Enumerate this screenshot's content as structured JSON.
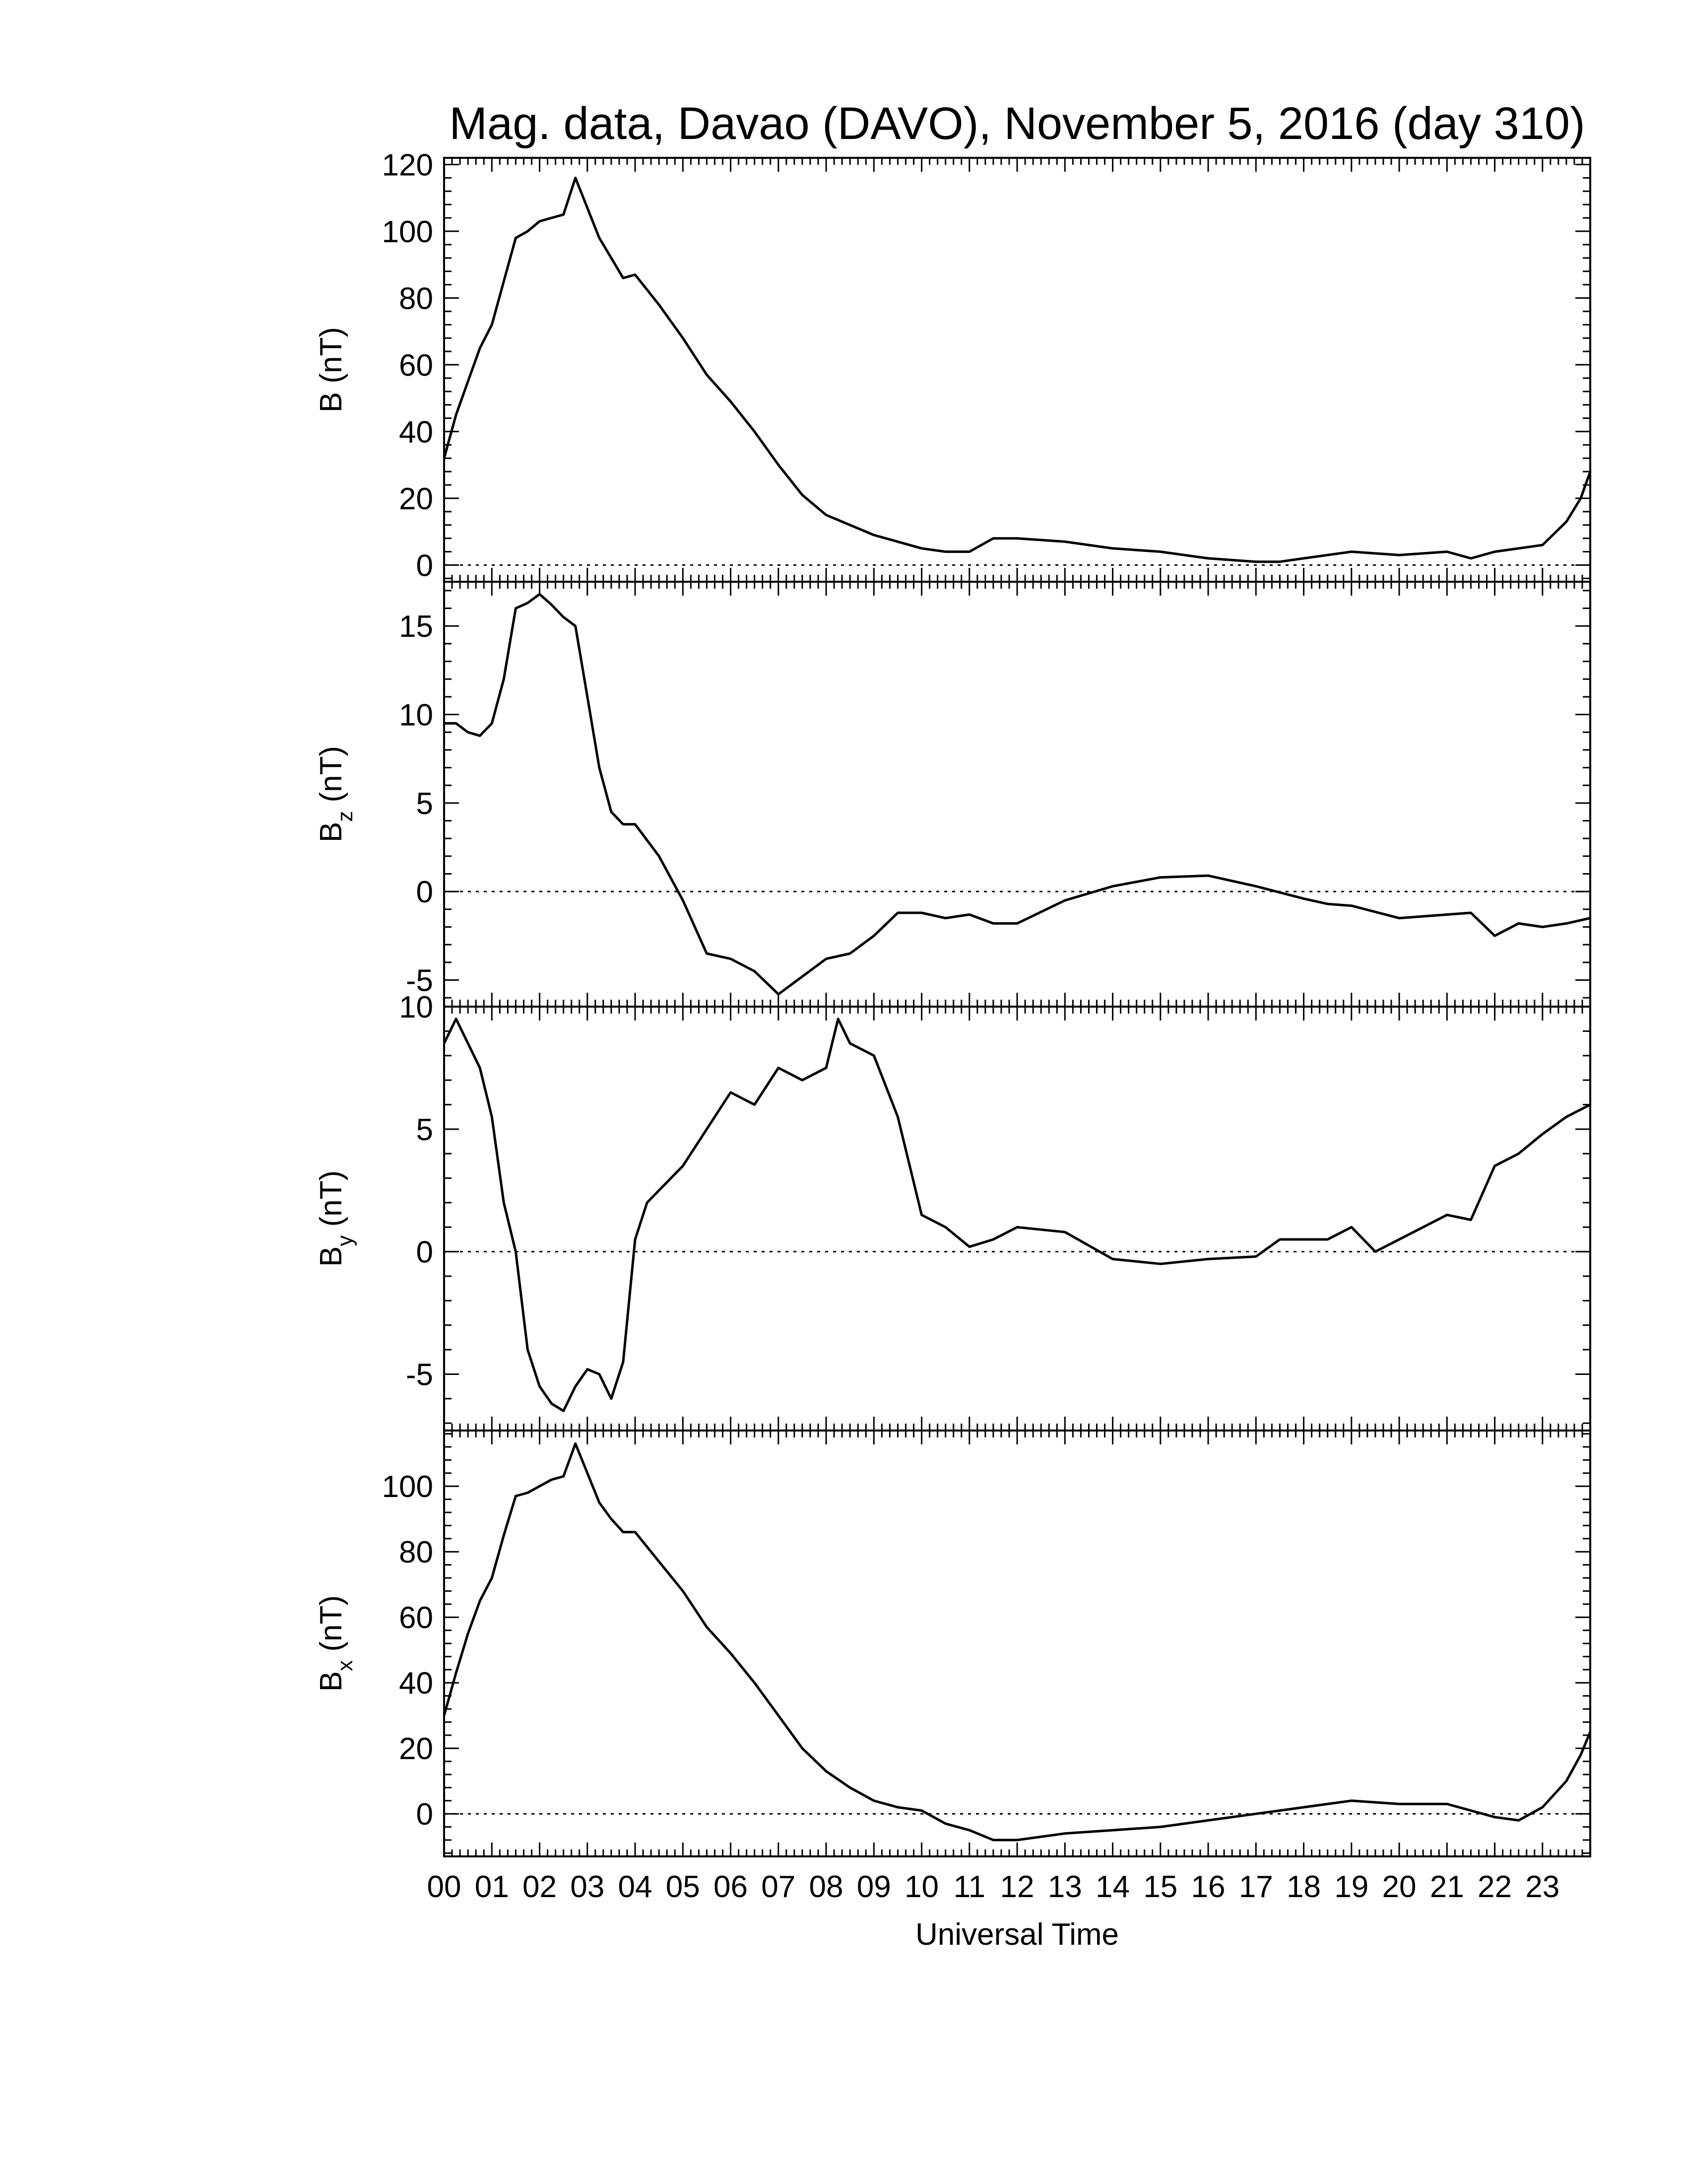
{
  "chart_data": {
    "type": "line",
    "title": "Mag. data, Davao (DAVO), November 5, 2016 (day 310)",
    "xlabel": "Universal Time",
    "x_ticks": [
      "00",
      "01",
      "02",
      "03",
      "04",
      "05",
      "06",
      "07",
      "08",
      "09",
      "10",
      "11",
      "12",
      "13",
      "14",
      "15",
      "16",
      "17",
      "18",
      "19",
      "20",
      "21",
      "22",
      "23"
    ],
    "xlim": [
      0,
      24
    ],
    "grid": false,
    "line_color": "#000000",
    "zero_reference": "dotted",
    "panels": [
      {
        "name": "B",
        "ylabel": "B (nT)",
        "ylabel_main": "B",
        "ylabel_sub": "",
        "ylabel_unit": "(nT)",
        "ylim": [
          -5,
          122
        ],
        "yticks": [
          0,
          20,
          40,
          60,
          80,
          100,
          120
        ],
        "ytick_labels": [
          "0",
          "20",
          "40",
          "60",
          "80",
          "100",
          "120"
        ],
        "x": [
          0,
          0.25,
          0.5,
          0.75,
          1.0,
          1.25,
          1.5,
          1.75,
          2.0,
          2.25,
          2.5,
          2.75,
          3.0,
          3.25,
          3.5,
          3.75,
          4.0,
          4.5,
          5.0,
          5.5,
          6.0,
          6.5,
          7.0,
          7.5,
          8.0,
          8.5,
          9.0,
          9.5,
          10.0,
          10.5,
          11.0,
          11.5,
          12.0,
          13.0,
          14.0,
          15.0,
          16.0,
          17.0,
          17.5,
          18.0,
          18.5,
          19.0,
          20.0,
          21.0,
          21.5,
          22.0,
          22.5,
          23.0,
          23.5,
          23.8,
          24.0
        ],
        "y": [
          32,
          45,
          55,
          65,
          72,
          85,
          98,
          100,
          103,
          104,
          105,
          116,
          107,
          98,
          92,
          86,
          87,
          78,
          68,
          57,
          49,
          40,
          30,
          21,
          15,
          12,
          9,
          7,
          5,
          4,
          4,
          8,
          8,
          7,
          5,
          4,
          2,
          1,
          1,
          2,
          3,
          4,
          3,
          4,
          2,
          4,
          5,
          6,
          13,
          20,
          28
        ]
      },
      {
        "name": "Bz",
        "ylabel": "Bz (nT)",
        "ylabel_main": "B",
        "ylabel_sub": "z",
        "ylabel_unit": "(nT)",
        "ylim": [
          -6.5,
          17.5
        ],
        "yticks": [
          -5,
          0,
          5,
          10,
          15
        ],
        "ytick_labels": [
          "-5",
          "0",
          "5",
          "10",
          "15"
        ],
        "x": [
          0,
          0.25,
          0.5,
          0.75,
          1.0,
          1.25,
          1.5,
          1.75,
          2.0,
          2.25,
          2.5,
          2.75,
          3.0,
          3.25,
          3.5,
          3.75,
          4.0,
          4.5,
          5.0,
          5.5,
          6.0,
          6.5,
          7.0,
          7.5,
          8.0,
          8.5,
          9.0,
          9.5,
          10.0,
          10.5,
          11.0,
          11.5,
          12.0,
          13.0,
          14.0,
          15.0,
          16.0,
          17.0,
          18.0,
          18.5,
          19.0,
          20.0,
          21.0,
          21.5,
          22.0,
          22.5,
          23.0,
          23.5,
          24.0
        ],
        "y": [
          9.5,
          9.5,
          9.0,
          8.8,
          9.5,
          12.0,
          16.0,
          16.3,
          16.8,
          16.2,
          15.5,
          15.0,
          11.0,
          7.0,
          4.5,
          3.8,
          3.8,
          2.0,
          -0.5,
          -3.5,
          -3.8,
          -4.5,
          -5.8,
          -4.8,
          -3.8,
          -3.5,
          -2.5,
          -1.2,
          -1.2,
          -1.5,
          -1.3,
          -1.8,
          -1.8,
          -0.5,
          0.3,
          0.8,
          0.9,
          0.3,
          -0.4,
          -0.7,
          -0.8,
          -1.5,
          -1.3,
          -1.2,
          -2.5,
          -1.8,
          -2.0,
          -1.8,
          -1.5
        ]
      },
      {
        "name": "By",
        "ylabel": "By (nT)",
        "ylabel_main": "B",
        "ylabel_sub": "y",
        "ylabel_unit": "(nT)",
        "ylim": [
          -7.3,
          10.0
        ],
        "yticks": [
          -5,
          0,
          5,
          10
        ],
        "ytick_labels": [
          "-5",
          "0",
          "5",
          "10"
        ],
        "x": [
          0,
          0.25,
          0.5,
          0.75,
          1.0,
          1.25,
          1.5,
          1.75,
          2.0,
          2.25,
          2.5,
          2.75,
          3.0,
          3.25,
          3.5,
          3.75,
          4.0,
          4.25,
          4.5,
          5.0,
          5.5,
          6.0,
          6.5,
          7.0,
          7.5,
          8.0,
          8.25,
          8.5,
          9.0,
          9.5,
          10.0,
          10.5,
          11.0,
          11.5,
          12.0,
          13.0,
          14.0,
          15.0,
          16.0,
          17.0,
          17.5,
          18.0,
          18.5,
          19.0,
          19.5,
          20.0,
          21.0,
          21.5,
          22.0,
          22.5,
          23.0,
          23.5,
          24.0
        ],
        "y": [
          8.5,
          9.5,
          8.5,
          7.5,
          5.5,
          2.0,
          0.0,
          -4.0,
          -5.5,
          -6.2,
          -6.5,
          -5.5,
          -4.8,
          -5.0,
          -6.0,
          -4.5,
          0.5,
          2.0,
          2.5,
          3.5,
          5.0,
          6.5,
          6.0,
          7.5,
          7.0,
          7.5,
          9.5,
          8.5,
          8.0,
          5.5,
          1.5,
          1.0,
          0.2,
          0.5,
          1.0,
          0.8,
          -0.3,
          -0.5,
          -0.3,
          -0.2,
          0.5,
          0.5,
          0.5,
          1.0,
          0.0,
          0.5,
          1.5,
          1.3,
          3.5,
          4.0,
          4.8,
          5.5,
          6.0
        ]
      },
      {
        "name": "Bx",
        "ylabel": "Bx (nT)",
        "ylabel_main": "B",
        "ylabel_sub": "x",
        "ylabel_unit": "(nT)",
        "ylim": [
          -13,
          117
        ],
        "yticks": [
          0,
          20,
          40,
          60,
          80,
          100
        ],
        "ytick_labels": [
          "0",
          "20",
          "40",
          "60",
          "80",
          "100"
        ],
        "x": [
          0,
          0.25,
          0.5,
          0.75,
          1.0,
          1.25,
          1.5,
          1.75,
          2.0,
          2.25,
          2.5,
          2.75,
          3.0,
          3.25,
          3.5,
          3.75,
          4.0,
          4.5,
          5.0,
          5.5,
          6.0,
          6.5,
          7.0,
          7.5,
          8.0,
          8.5,
          9.0,
          9.5,
          10.0,
          10.5,
          11.0,
          11.5,
          12.0,
          13.0,
          14.0,
          15.0,
          16.0,
          17.0,
          17.5,
          18.0,
          18.5,
          19.0,
          20.0,
          21.0,
          21.5,
          22.0,
          22.5,
          23.0,
          23.5,
          23.8,
          24.0
        ],
        "y": [
          30,
          43,
          55,
          65,
          72,
          85,
          97,
          98,
          100,
          102,
          103,
          113,
          104,
          95,
          90,
          86,
          86,
          77,
          68,
          57,
          49,
          40,
          30,
          20,
          13,
          8,
          4,
          2,
          1,
          -3,
          -5,
          -8,
          -8,
          -6,
          -5,
          -4,
          -2,
          0,
          1,
          2,
          3,
          4,
          3,
          3,
          1,
          -1,
          -2,
          2,
          10,
          18,
          25
        ]
      }
    ]
  }
}
